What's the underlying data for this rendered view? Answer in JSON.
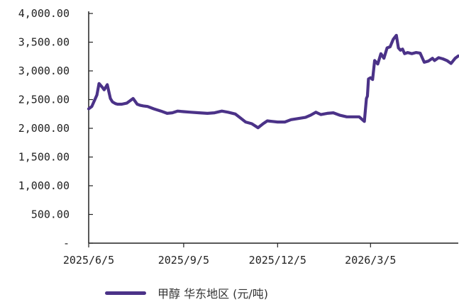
{
  "chart_data": {
    "type": "line",
    "title": "",
    "xlabel": "",
    "ylabel": "",
    "ylim": [
      0,
      4000
    ],
    "y_ticks": [
      0,
      500,
      1000,
      1500,
      2000,
      2500,
      3000,
      3500,
      4000
    ],
    "y_tick_labels": [
      "-",
      "500.00",
      "1,000.00",
      "1,500.00",
      "2,000.00",
      "2,500.00",
      "3,000.00",
      "3,500.00",
      "4,000.00"
    ],
    "x_ticks": [
      "2025-06-05",
      "2025-09-05",
      "2025-12-05",
      "2026-03-05"
    ],
    "x_tick_labels": [
      "2025/6/5",
      "2025/9/5",
      "2025/12/5",
      "2026/3/5"
    ],
    "xlim": [
      "2025-06-05",
      "2026-05-29"
    ],
    "grid": false,
    "legend_position": "bottom",
    "series": [
      {
        "name": "甲醇 华东地区 (元/吨)",
        "color": "#4b3288",
        "x": [
          "2025-06-05",
          "2025-06-08",
          "2025-06-10",
          "2025-06-13",
          "2025-06-15",
          "2025-06-18",
          "2025-06-20",
          "2025-06-23",
          "2025-06-26",
          "2025-06-28",
          "2025-07-01",
          "2025-07-03",
          "2025-07-07",
          "2025-07-12",
          "2025-07-18",
          "2025-07-22",
          "2025-07-25",
          "2025-07-28",
          "2025-08-01",
          "2025-08-07",
          "2025-08-14",
          "2025-08-20",
          "2025-08-25",
          "2025-08-30",
          "2025-09-05",
          "2025-09-12",
          "2025-09-20",
          "2025-09-28",
          "2025-10-05",
          "2025-10-12",
          "2025-10-18",
          "2025-10-25",
          "2025-10-30",
          "2025-11-04",
          "2025-11-10",
          "2025-11-16",
          "2025-11-21",
          "2025-11-25",
          "2025-11-30",
          "2025-12-05",
          "2025-12-12",
          "2025-12-18",
          "2025-12-25",
          "2026-01-01",
          "2026-01-06",
          "2026-01-11",
          "2026-01-16",
          "2026-01-22",
          "2026-01-28",
          "2026-02-03",
          "2026-02-10",
          "2026-02-16",
          "2026-02-22",
          "2026-02-27",
          "2026-03-01",
          "2026-03-02",
          "2026-03-03",
          "2026-03-05",
          "2026-03-07",
          "2026-03-09",
          "2026-03-12",
          "2026-03-15",
          "2026-03-18",
          "2026-03-21",
          "2026-03-24",
          "2026-03-27",
          "2026-03-30",
          "2026-04-01",
          "2026-04-03",
          "2026-04-05",
          "2026-04-07",
          "2026-04-10",
          "2026-04-14",
          "2026-04-18",
          "2026-04-22",
          "2026-04-26",
          "2026-04-30",
          "2026-05-04",
          "2026-05-06",
          "2026-05-10",
          "2026-05-14",
          "2026-05-18",
          "2026-05-22",
          "2026-05-26",
          "2026-05-29"
        ],
        "values": [
          2340,
          2380,
          2460,
          2580,
          2780,
          2720,
          2670,
          2760,
          2520,
          2460,
          2430,
          2420,
          2420,
          2440,
          2520,
          2420,
          2400,
          2390,
          2380,
          2340,
          2300,
          2260,
          2270,
          2300,
          2290,
          2280,
          2270,
          2260,
          2270,
          2300,
          2280,
          2250,
          2180,
          2110,
          2080,
          2010,
          2080,
          2130,
          2120,
          2110,
          2110,
          2150,
          2170,
          2190,
          2230,
          2280,
          2240,
          2260,
          2270,
          2230,
          2200,
          2200,
          2200,
          2120,
          2520,
          2560,
          2860,
          2880,
          2850,
          3180,
          3120,
          3300,
          3220,
          3400,
          3420,
          3550,
          3620,
          3400,
          3360,
          3380,
          3300,
          3320,
          3300,
          3320,
          3310,
          3150,
          3170,
          3220,
          3180,
          3230,
          3210,
          3180,
          3130,
          3220,
          3260
        ]
      }
    ]
  }
}
